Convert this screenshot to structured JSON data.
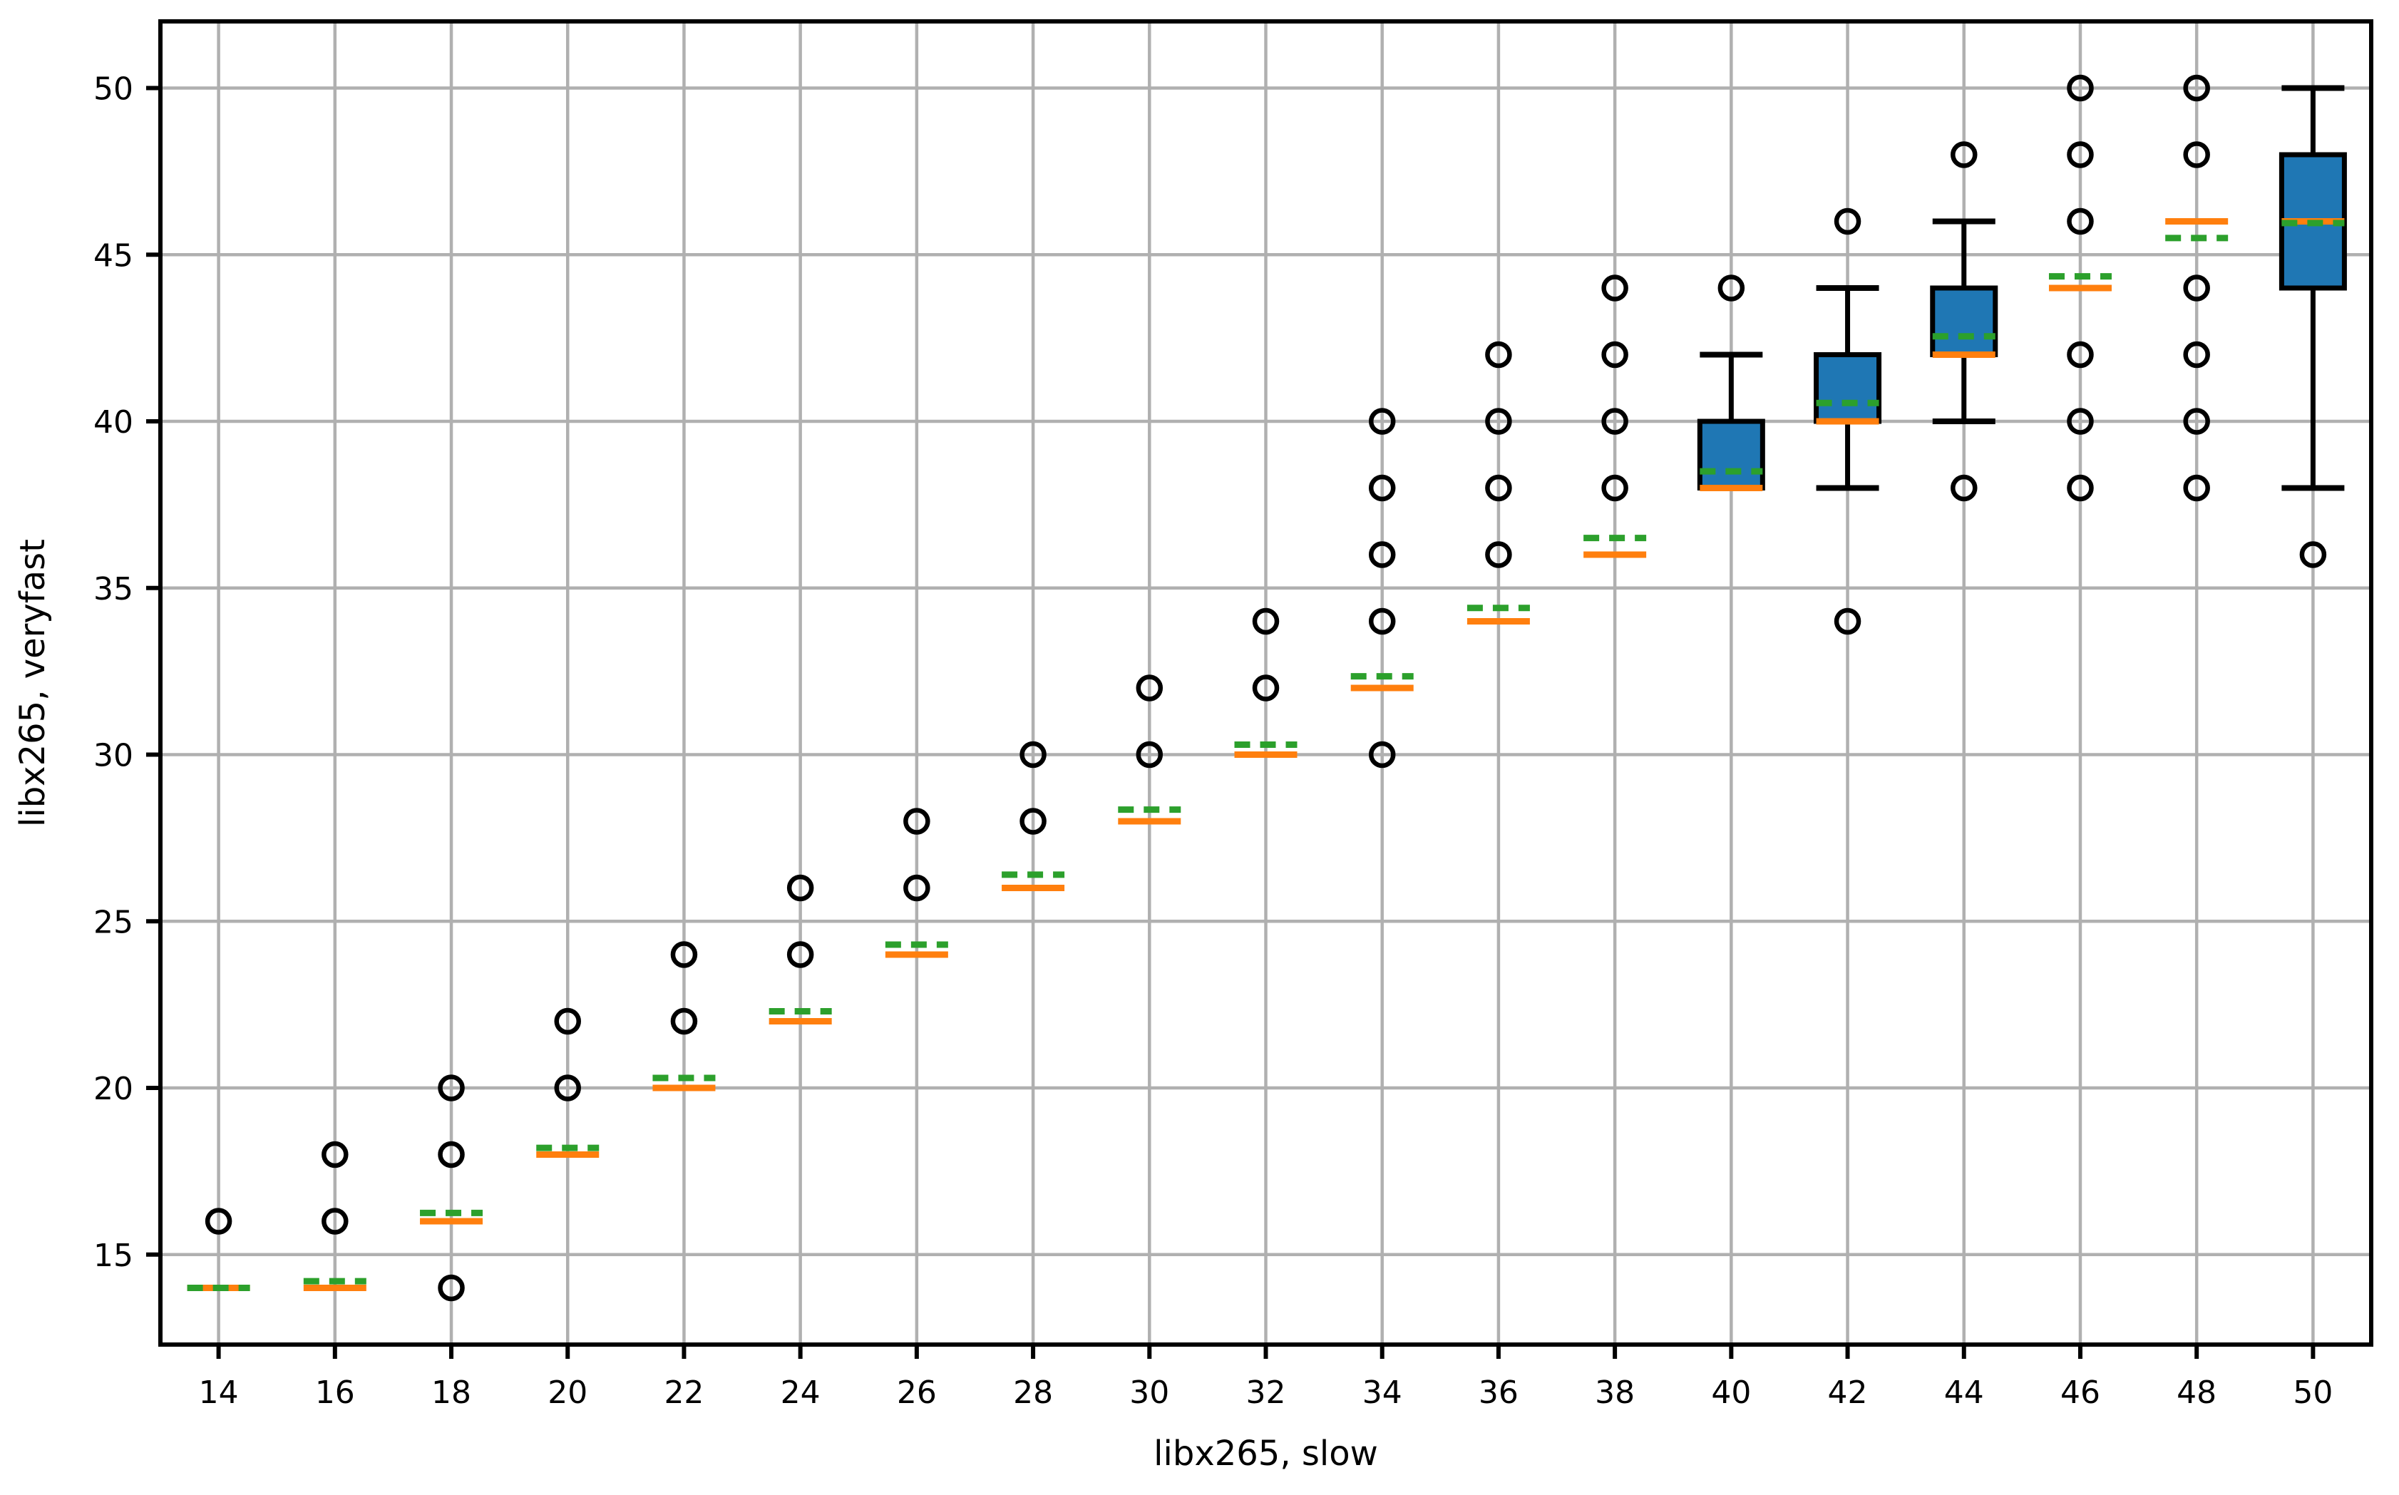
{
  "chart_data": {
    "type": "boxplot",
    "title": "",
    "xlabel": "libx265, slow",
    "ylabel": "libx265, veryfast",
    "x_ticks": [
      14,
      16,
      18,
      20,
      22,
      24,
      26,
      28,
      30,
      32,
      34,
      36,
      38,
      40,
      42,
      44,
      46,
      48,
      50
    ],
    "y_ticks": [
      15,
      20,
      25,
      30,
      35,
      40,
      45,
      50
    ],
    "xlim": [
      13,
      51
    ],
    "ylim": [
      12.3,
      52.0
    ],
    "grid": true,
    "legend": false,
    "marker_style": "open-circle-outliers",
    "series": [
      {
        "x": 14,
        "median": 14,
        "mean": 14.0,
        "q1": 14,
        "q3": 14,
        "whisker_low": 14,
        "whisker_high": 14,
        "outliers": [
          16
        ]
      },
      {
        "x": 16,
        "median": 14,
        "mean": 14.2,
        "q1": 14,
        "q3": 14,
        "whisker_low": 14,
        "whisker_high": 14,
        "outliers": [
          16,
          18
        ]
      },
      {
        "x": 18,
        "median": 16,
        "mean": 16.25,
        "q1": 16,
        "q3": 16,
        "whisker_low": 16,
        "whisker_high": 16,
        "outliers": [
          14,
          18,
          20
        ]
      },
      {
        "x": 20,
        "median": 18,
        "mean": 18.2,
        "q1": 18,
        "q3": 18,
        "whisker_low": 18,
        "whisker_high": 18,
        "outliers": [
          20,
          22
        ]
      },
      {
        "x": 22,
        "median": 20,
        "mean": 20.3,
        "q1": 20,
        "q3": 20,
        "whisker_low": 20,
        "whisker_high": 20,
        "outliers": [
          22,
          24
        ]
      },
      {
        "x": 24,
        "median": 22,
        "mean": 22.3,
        "q1": 22,
        "q3": 22,
        "whisker_low": 22,
        "whisker_high": 22,
        "outliers": [
          24,
          26
        ]
      },
      {
        "x": 26,
        "median": 24,
        "mean": 24.3,
        "q1": 24,
        "q3": 24,
        "whisker_low": 24,
        "whisker_high": 24,
        "outliers": [
          26,
          28
        ]
      },
      {
        "x": 28,
        "median": 26,
        "mean": 26.4,
        "q1": 26,
        "q3": 26,
        "whisker_low": 26,
        "whisker_high": 26,
        "outliers": [
          28,
          30
        ]
      },
      {
        "x": 30,
        "median": 28,
        "mean": 28.35,
        "q1": 28,
        "q3": 28,
        "whisker_low": 28,
        "whisker_high": 28,
        "outliers": [
          30,
          32
        ]
      },
      {
        "x": 32,
        "median": 30,
        "mean": 30.3,
        "q1": 30,
        "q3": 30,
        "whisker_low": 30,
        "whisker_high": 30,
        "outliers": [
          32,
          34
        ]
      },
      {
        "x": 34,
        "median": 32,
        "mean": 32.35,
        "q1": 32,
        "q3": 32,
        "whisker_low": 32,
        "whisker_high": 32,
        "outliers": [
          30,
          34,
          36,
          38,
          40
        ]
      },
      {
        "x": 36,
        "median": 34,
        "mean": 34.4,
        "q1": 34,
        "q3": 34,
        "whisker_low": 34,
        "whisker_high": 34,
        "outliers": [
          36,
          38,
          40,
          42
        ]
      },
      {
        "x": 38,
        "median": 36,
        "mean": 36.5,
        "q1": 36,
        "q3": 36,
        "whisker_low": 36,
        "whisker_high": 36,
        "outliers": [
          38,
          40,
          42,
          44
        ]
      },
      {
        "x": 40,
        "median": 38,
        "mean": 38.5,
        "q1": 38,
        "q3": 40,
        "whisker_low": 38,
        "whisker_high": 42,
        "outliers": [
          44
        ]
      },
      {
        "x": 42,
        "median": 40,
        "mean": 40.55,
        "q1": 40,
        "q3": 42,
        "whisker_low": 38,
        "whisker_high": 44,
        "outliers": [
          34,
          46
        ]
      },
      {
        "x": 44,
        "median": 42,
        "mean": 42.55,
        "q1": 42,
        "q3": 44,
        "whisker_low": 40,
        "whisker_high": 46,
        "outliers": [
          38,
          48
        ]
      },
      {
        "x": 46,
        "median": 44,
        "mean": 44.35,
        "q1": 44,
        "q3": 44,
        "whisker_low": 44,
        "whisker_high": 44,
        "outliers": [
          38,
          40,
          42,
          46,
          48,
          50
        ]
      },
      {
        "x": 48,
        "median": 46,
        "mean": 45.5,
        "q1": 46,
        "q3": 46,
        "whisker_low": 46,
        "whisker_high": 46,
        "outliers": [
          38,
          40,
          42,
          44,
          48,
          50
        ]
      },
      {
        "x": 50,
        "median": 46,
        "mean": 45.95,
        "q1": 44,
        "q3": 48,
        "whisker_low": 38,
        "whisker_high": 50,
        "outliers": [
          36
        ]
      }
    ],
    "colors": {
      "box_face": "#1f77b4",
      "box_edge": "#000000",
      "median": "#ff7f0e",
      "mean": "#2ca02c",
      "whisker": "#000000",
      "outlier_edge": "#000000",
      "grid": "#b0b0b0",
      "spine": "#000000",
      "background": "#ffffff"
    }
  }
}
